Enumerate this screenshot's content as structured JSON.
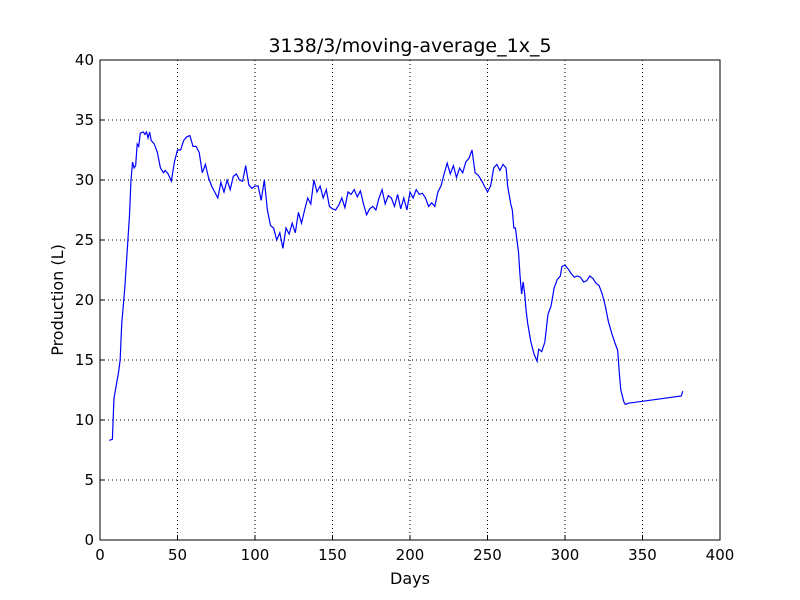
{
  "chart_data": {
    "type": "line",
    "title": "3138/3/moving-average_1x_5",
    "x_label": "Days",
    "y_label": "Production (L)",
    "x": [
      6,
      8,
      9,
      12,
      13,
      14,
      16,
      18,
      19,
      20,
      21,
      22,
      23,
      24,
      25,
      26,
      28,
      29,
      30,
      31,
      32,
      33,
      35,
      37,
      39,
      41,
      42,
      44,
      46,
      48,
      50,
      52,
      54,
      56,
      58,
      60,
      62,
      64,
      66,
      68,
      70,
      72,
      74,
      76,
      78,
      80,
      82,
      84,
      86,
      88,
      90,
      92,
      94,
      96,
      98,
      100,
      102,
      104,
      106,
      108,
      110,
      112,
      114,
      116,
      118,
      120,
      122,
      124,
      126,
      128,
      130,
      132,
      134,
      136,
      138,
      140,
      142,
      144,
      146,
      148,
      150,
      152,
      154,
      156,
      158,
      160,
      162,
      164,
      166,
      168,
      170,
      172,
      174,
      176,
      178,
      180,
      182,
      184,
      186,
      188,
      190,
      192,
      194,
      196,
      198,
      200,
      202,
      204,
      206,
      208,
      210,
      212,
      214,
      216,
      218,
      220,
      222,
      224,
      226,
      228,
      230,
      232,
      234,
      236,
      238,
      240,
      242,
      244,
      246,
      248,
      250,
      252,
      254,
      256,
      258,
      260,
      262,
      263,
      265,
      266,
      267,
      268,
      270,
      271,
      272,
      273,
      274,
      275,
      276,
      278,
      280,
      282,
      283,
      285,
      287,
      289,
      291,
      293,
      295,
      297,
      298,
      300,
      302,
      304,
      306,
      308,
      310,
      312,
      314,
      316,
      318,
      320,
      322,
      324,
      326,
      328,
      330,
      332,
      334,
      335,
      336,
      338,
      339,
      341,
      375,
      376
    ],
    "series": [
      {
        "name": "moving-average",
        "color": "#0000ff",
        "values": [
          8.3,
          8.4,
          11.8,
          14,
          15,
          18,
          21,
          25,
          27,
          30,
          31.5,
          31,
          31.2,
          33,
          32.8,
          33.9,
          34,
          33.8,
          34,
          33.5,
          34,
          33.3,
          33,
          32.3,
          31,
          30.6,
          30.8,
          30.5,
          29.9,
          31.5,
          32.5,
          32.5,
          33.3,
          33.6,
          33.7,
          32.8,
          32.8,
          32.3,
          30.6,
          31.3,
          30.2,
          29.5,
          29,
          28.5,
          29.8,
          29,
          30,
          29.2,
          30.3,
          30.5,
          30,
          29.9,
          31.2,
          29.6,
          29.3,
          29.5,
          29.5,
          28.3,
          30,
          27.5,
          26.2,
          26,
          25,
          25.6,
          24.3,
          26,
          25.5,
          26.4,
          25.6,
          27.3,
          26.4,
          27.5,
          28.5,
          28,
          30,
          29,
          29.5,
          28.5,
          29.2,
          27.8,
          27.6,
          27.5,
          27.9,
          28.5,
          27.7,
          29,
          28.8,
          29.2,
          28.6,
          29.1,
          28,
          27.1,
          27.6,
          27.8,
          27.5,
          28.5,
          29.2,
          28,
          28.7,
          28.5,
          27.8,
          28.8,
          27.6,
          28.5,
          27.5,
          29,
          28.5,
          29.2,
          28.8,
          28.9,
          28.5,
          27.8,
          28.1,
          27.8,
          29,
          29.5,
          30.5,
          31.4,
          30.5,
          31.2,
          30.2,
          31,
          30.6,
          31.5,
          31.8,
          32.5,
          30.6,
          30.4,
          30,
          29.5,
          29,
          29.5,
          31,
          31.3,
          30.8,
          31.3,
          31,
          29.5,
          28,
          27.5,
          26,
          26,
          24,
          22,
          20.5,
          21.5,
          20.5,
          19,
          18,
          16.5,
          15.5,
          14.9,
          15.9,
          15.7,
          16.5,
          18.8,
          19.5,
          21,
          21.7,
          22,
          22.8,
          22.9,
          22.6,
          22.2,
          21.9,
          22,
          21.9,
          21.5,
          21.6,
          22,
          21.8,
          21.4,
          21.2,
          20.5,
          19.5,
          18.2,
          17.3,
          16.5,
          15.8,
          14,
          12.5,
          11.5,
          11.3,
          11.4,
          12,
          12.4
        ]
      }
    ],
    "xlim": [
      0,
      400
    ],
    "ylim": [
      0,
      40
    ],
    "xticks": [
      0,
      50,
      100,
      150,
      200,
      250,
      300,
      350,
      400
    ],
    "yticks": [
      0,
      5,
      10,
      15,
      20,
      25,
      30,
      35,
      40
    ],
    "grid": true
  }
}
